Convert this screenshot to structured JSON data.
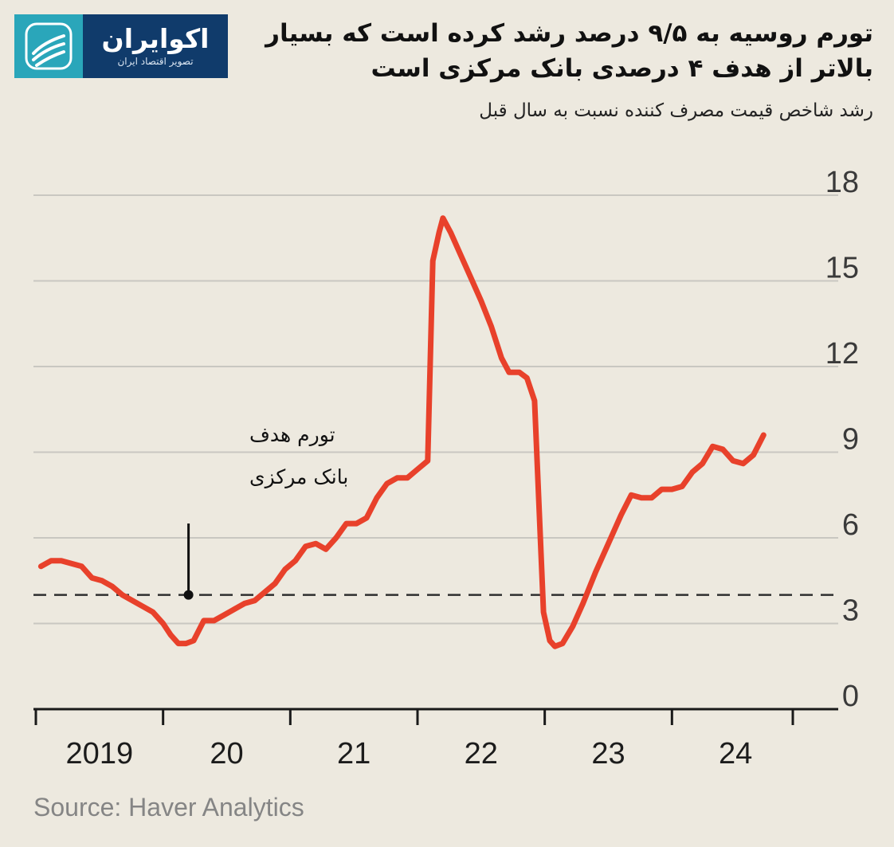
{
  "title": "تورم روسیه به ۹/۵ درصد رشد کرده است که بسیار بالاتر از هدف ۴ درصدی بانک مرکزی است",
  "subtitle": "رشد شاخص قیمت مصرف کننده نسبت به سال قبل",
  "logo": {
    "name": "اکوایران",
    "tagline": "تصویر اقتصاد ایران",
    "icon": "ecoiran-logo-icon",
    "colors": {
      "panel": "#103b6b",
      "mark": "#2aa6ba"
    }
  },
  "source": "Source: Haver Analytics",
  "chart_data": {
    "type": "line",
    "ylim": [
      0,
      18
    ],
    "xlim": [
      2019.0,
      2024.95
    ],
    "y_ticks": [
      {
        "value": 18,
        "label": "18"
      },
      {
        "value": 15,
        "label": "15"
      },
      {
        "value": 12,
        "label": "12"
      },
      {
        "value": 9,
        "label": "9"
      },
      {
        "value": 6,
        "label": "6"
      },
      {
        "value": 3,
        "label": "3"
      },
      {
        "value": 0,
        "label": "0"
      }
    ],
    "x_ticks": [
      {
        "label": "2019",
        "at": 2019.5
      },
      {
        "label": "20",
        "at": 2020.5
      },
      {
        "label": "21",
        "at": 2021.5
      },
      {
        "label": "22",
        "at": 2022.5
      },
      {
        "label": "23",
        "at": 2023.5
      },
      {
        "label": "24",
        "at": 2024.5
      }
    ],
    "grid": true,
    "line_color": "#e8412b",
    "series": [
      {
        "values": [
          [
            2019.04,
            5.0
          ],
          [
            2019.12,
            5.2
          ],
          [
            2019.2,
            5.2
          ],
          [
            2019.28,
            5.1
          ],
          [
            2019.36,
            5.0
          ],
          [
            2019.44,
            4.6
          ],
          [
            2019.52,
            4.5
          ],
          [
            2019.6,
            4.3
          ],
          [
            2019.68,
            4.0
          ],
          [
            2019.76,
            3.8
          ],
          [
            2019.84,
            3.6
          ],
          [
            2019.92,
            3.4
          ],
          [
            2020.0,
            3.0
          ],
          [
            2020.06,
            2.6
          ],
          [
            2020.12,
            2.3
          ],
          [
            2020.18,
            2.3
          ],
          [
            2020.24,
            2.4
          ],
          [
            2020.32,
            3.1
          ],
          [
            2020.4,
            3.1
          ],
          [
            2020.48,
            3.3
          ],
          [
            2020.56,
            3.5
          ],
          [
            2020.64,
            3.7
          ],
          [
            2020.72,
            3.8
          ],
          [
            2020.8,
            4.1
          ],
          [
            2020.88,
            4.4
          ],
          [
            2020.96,
            4.9
          ],
          [
            2021.04,
            5.2
          ],
          [
            2021.12,
            5.7
          ],
          [
            2021.2,
            5.8
          ],
          [
            2021.28,
            5.6
          ],
          [
            2021.36,
            6.0
          ],
          [
            2021.44,
            6.5
          ],
          [
            2021.52,
            6.5
          ],
          [
            2021.6,
            6.7
          ],
          [
            2021.68,
            7.4
          ],
          [
            2021.76,
            7.9
          ],
          [
            2021.84,
            8.1
          ],
          [
            2021.92,
            8.1
          ],
          [
            2022.0,
            8.4
          ],
          [
            2022.08,
            8.7
          ],
          [
            2022.12,
            15.7
          ],
          [
            2022.17,
            16.7
          ],
          [
            2022.2,
            17.2
          ],
          [
            2022.26,
            16.7
          ],
          [
            2022.34,
            15.9
          ],
          [
            2022.42,
            15.1
          ],
          [
            2022.5,
            14.3
          ],
          [
            2022.58,
            13.4
          ],
          [
            2022.66,
            12.3
          ],
          [
            2022.72,
            11.8
          ],
          [
            2022.8,
            11.8
          ],
          [
            2022.86,
            11.6
          ],
          [
            2022.92,
            10.8
          ],
          [
            2022.99,
            3.4
          ],
          [
            2023.04,
            2.4
          ],
          [
            2023.08,
            2.2
          ],
          [
            2023.14,
            2.3
          ],
          [
            2023.22,
            2.9
          ],
          [
            2023.3,
            3.7
          ],
          [
            2023.4,
            4.8
          ],
          [
            2023.5,
            5.8
          ],
          [
            2023.6,
            6.8
          ],
          [
            2023.68,
            7.5
          ],
          [
            2023.76,
            7.4
          ],
          [
            2023.84,
            7.4
          ],
          [
            2023.92,
            7.7
          ],
          [
            2024.0,
            7.7
          ],
          [
            2024.08,
            7.8
          ],
          [
            2024.16,
            8.3
          ],
          [
            2024.24,
            8.6
          ],
          [
            2024.32,
            9.2
          ],
          [
            2024.4,
            9.1
          ],
          [
            2024.48,
            8.7
          ],
          [
            2024.56,
            8.6
          ],
          [
            2024.64,
            8.9
          ],
          [
            2024.72,
            9.6
          ]
        ]
      }
    ],
    "target": {
      "value": 4,
      "style": "dashed",
      "label": [
        "تورم هدف",
        "بانک مرکزی"
      ],
      "marker_x": 2020.2
    }
  }
}
